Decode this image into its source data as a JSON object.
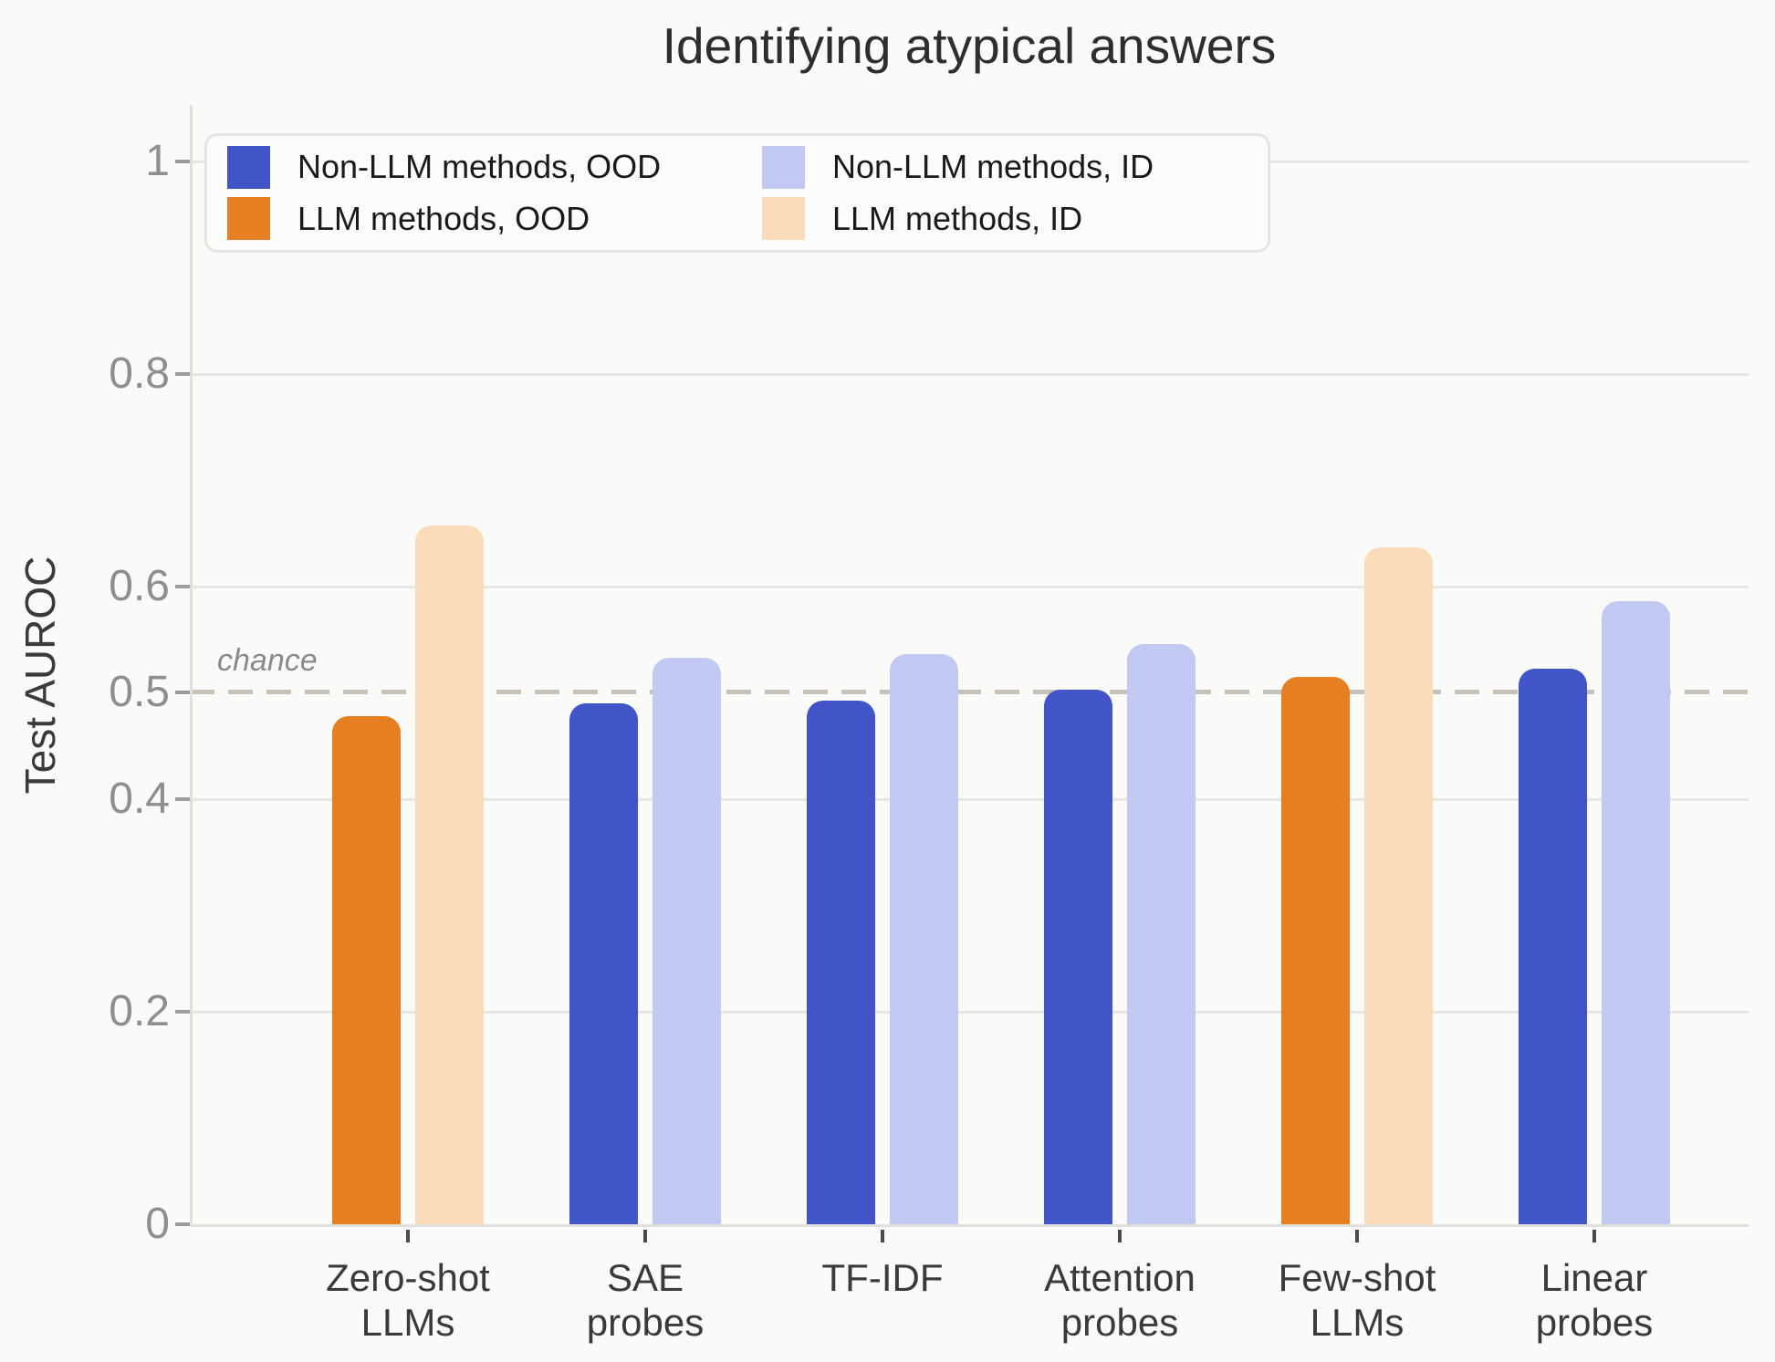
{
  "colors": {
    "background": "#FAFAF8",
    "non_llm_ood": "#4155C8",
    "llm_ood": "#E67E22",
    "non_llm_id": "#C1C9F2",
    "llm_id": "#FADCBA",
    "gridline": "#E6E6E2",
    "dashed_chance_line": "#C6C2B9",
    "axis_spine": "#E0DFDA",
    "y_tick_label": "#8E8E8E",
    "x_tick_label": "#3A3A3A",
    "title_text": "#2E2E2E",
    "chance_text": "#8A8A8A",
    "y_tick_mark": "#9B9B9B",
    "x_tick_mark": "#4A4A4A",
    "legend_bg": "#FBFBF9",
    "legend_border": "#E5E4E0"
  },
  "chart_data": {
    "type": "bar",
    "title": "Identifying atypical answers",
    "xlabel": "",
    "ylabel": "Test AUROC",
    "ylim": [
      0,
      1.053
    ],
    "grid": true,
    "legend_position": "upper left, 2 columns",
    "categories": [
      [
        "Zero-shot",
        "LLMs"
      ],
      [
        "SAE",
        "probes"
      ],
      [
        "TF-IDF"
      ],
      [
        "Attention",
        "probes"
      ],
      [
        "Few-shot",
        "LLMs"
      ],
      [
        "Linear",
        "probes"
      ]
    ],
    "yticks": [
      {
        "value": 0,
        "label": "0"
      },
      {
        "value": 0.2,
        "label": "0.2",
        "gridline": true
      },
      {
        "value": 0.4,
        "label": "0.4",
        "gridline": true
      },
      {
        "value": 0.5,
        "label": "0.5",
        "dashed": true
      },
      {
        "value": 0.6,
        "label": "0.6",
        "gridline": true
      },
      {
        "value": 0.8,
        "label": "0.8",
        "gridline": true
      },
      {
        "value": 1,
        "label": "1",
        "gridline": true
      }
    ],
    "series": [
      {
        "name": "Non-LLM methods, OOD",
        "group": "OOD",
        "color": "#4155C8",
        "values": [
          null,
          0.49,
          0.493,
          0.503,
          null,
          0.523
        ]
      },
      {
        "name": "LLM methods, OOD",
        "group": "OOD",
        "color": "#E67E22",
        "values": [
          0.478,
          null,
          null,
          null,
          0.515,
          null
        ]
      },
      {
        "name": "Non-LLM methods, ID",
        "group": "ID",
        "color": "#C1C9F2",
        "values": [
          null,
          0.533,
          0.536,
          0.546,
          null,
          0.586
        ]
      },
      {
        "name": "LLM methods, ID",
        "group": "ID",
        "color": "#FADCBA",
        "values": [
          0.657,
          null,
          null,
          null,
          0.637,
          null
        ]
      }
    ],
    "legend_order": [
      0,
      2,
      1,
      3
    ],
    "annotations": [
      {
        "text": "chance",
        "value": 0.5,
        "style": "dashed horizontal line"
      }
    ]
  }
}
